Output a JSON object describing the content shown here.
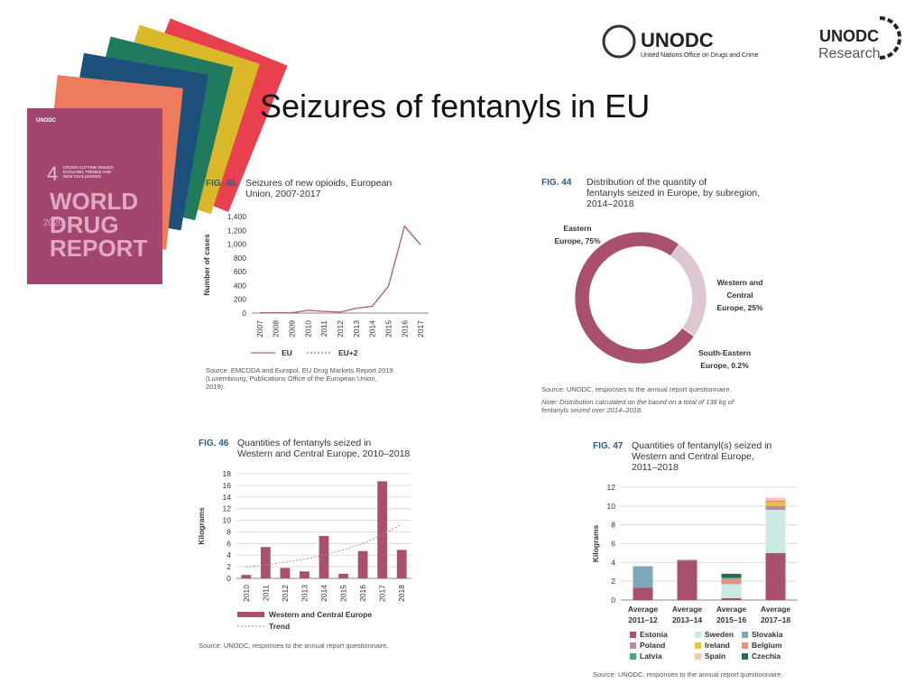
{
  "slide": {
    "title": "Seizures of fentanyls in EU",
    "logo": {
      "name": "UNODC",
      "subtitle": "United Nations Office on Drugs and Crime",
      "research_name": "UNODC",
      "research_sub": "Research"
    },
    "cover": {
      "logo": "UNODC",
      "number": "4",
      "subtitle": "CROSS-CUTTING ISSUES:\nEVOLVING TRENDS AND\nNEW CHALLENGES",
      "title": "WORLD\nDRUG\nREPORT",
      "year": "2020"
    }
  },
  "chart_data": [
    {
      "type": "line",
      "fig": "FIG. 45",
      "title": "Seizures of new opioids, European\nUnion, 2007-2017",
      "ylabel": "Number of cases",
      "categories": [
        "2007",
        "2008",
        "2009",
        "2010",
        "2011",
        "2012",
        "2013",
        "2014",
        "2015",
        "2016",
        "2017"
      ],
      "series": [
        {
          "name": "EU",
          "color": "#b5607e",
          "dash": "solid",
          "values": [
            5,
            5,
            5,
            40,
            25,
            15,
            70,
            100,
            390,
            1260,
            990
          ]
        },
        {
          "name": "EU+2",
          "color": "#b5607e",
          "dash": "dotted",
          "values": [
            5,
            5,
            5,
            40,
            25,
            15,
            70,
            100,
            390,
            1260,
            990
          ]
        }
      ],
      "ylim": [
        0,
        1400
      ],
      "yticks": [
        0,
        200,
        400,
        600,
        800,
        {
          "value": 1000,
          "label": "1,000"
        },
        {
          "value": 1200,
          "label": "1,200"
        },
        {
          "value": 1400,
          "label": "1,400"
        }
      ],
      "grid": false,
      "source": "Source: EMCDDA and Europol, EU Drug Markets Report 2019\n(Luxembourg, Publications Office of the European Union,\n2019)."
    },
    {
      "type": "pie",
      "fig": "FIG. 44",
      "title": "Distribution of the quantity of\nfentanyls seized in Europe, by subregion,\n2014–2018",
      "values": [
        75,
        25,
        0.2
      ],
      "value_labels": [
        "Eastern\nEurope, 75%",
        "Western and\nCentral\nEurope, 25%",
        "South-Eastern\nEurope, 0.2%"
      ],
      "colors": [
        "#a8506e",
        "#dcc6d1",
        "#e9c98c"
      ],
      "source": "Source: UNODC, responses to the annual report questionnaire.",
      "note": "Note: Distribution calculated on the based on a total of 138 kg of\nfentanyls seized over 2014–2018."
    },
    {
      "type": "bar",
      "fig": "FIG. 46",
      "title": "Quantities of fentanyls seized in\nWestern and Central Europe, 2010–2018",
      "ylabel": "Kilograms",
      "categories": [
        "2010",
        "2011",
        "2012",
        "2013",
        "2014",
        "2015",
        "2016",
        "2017",
        "2018"
      ],
      "series": [
        {
          "name": "Western and Central Europe",
          "color": "#a8506e",
          "type": "bar",
          "values": [
            0.6,
            5.4,
            1.8,
            1.2,
            7.3,
            0.8,
            4.7,
            16.7,
            4.9
          ]
        },
        {
          "name": "Trend",
          "color": "#999999",
          "type": "line",
          "dash": "dotted",
          "values": [
            2.0,
            2.3,
            2.8,
            3.3,
            4.0,
            4.9,
            6.0,
            7.5,
            9.3
          ]
        }
      ],
      "ylim": [
        0,
        18
      ],
      "yticks": [
        0,
        2,
        4,
        6,
        8,
        10,
        12,
        14,
        16,
        18
      ],
      "grid": true,
      "source": "Source: UNODC, responses to the annual report questionnaire."
    },
    {
      "type": "bar",
      "stacked": true,
      "fig": "FIG. 47",
      "title": "Quantities of fentanyl(s) seized in\nWestern and Central Europe,\n2011–2018",
      "ylabel": "Kilograms",
      "categories": [
        "Average\n2011–12",
        "Average\n2013–14",
        "Average\n2015–16",
        "Average\n2017–18"
      ],
      "series": [
        {
          "name": "Estonia",
          "color": "#a8506e",
          "values": [
            1.3,
            4.2,
            0.2,
            5.0
          ]
        },
        {
          "name": "Sweden",
          "color": "#cde8e2",
          "values": [
            0,
            0,
            1.5,
            4.6
          ]
        },
        {
          "name": "Slovakia",
          "color": "#7fa9b8",
          "values": [
            2.3,
            0,
            0,
            0
          ]
        },
        {
          "name": "Poland",
          "color": "#b38ca2",
          "values": [
            0,
            0.1,
            0.1,
            0.4
          ]
        },
        {
          "name": "Ireland",
          "color": "#e2c23e",
          "values": [
            0,
            0,
            0,
            0.4
          ]
        },
        {
          "name": "Belgium",
          "color": "#ea8f7e",
          "values": [
            0,
            0,
            0.5,
            0.2
          ]
        },
        {
          "name": "Latvia",
          "color": "#3fa88e",
          "values": [
            0,
            0,
            0.1,
            0
          ]
        },
        {
          "name": "Spain",
          "color": "#f3cbb3",
          "values": [
            0,
            0,
            0,
            0.3
          ]
        },
        {
          "name": "Czechia",
          "color": "#2a6a52",
          "values": [
            0,
            0,
            0.4,
            0
          ]
        }
      ],
      "ylim": [
        0,
        12
      ],
      "yticks": [
        0,
        2,
        4,
        6,
        8,
        10,
        12
      ],
      "grid": true,
      "source": "Source: UNODC, responses to the annual report questionnaire."
    }
  ]
}
